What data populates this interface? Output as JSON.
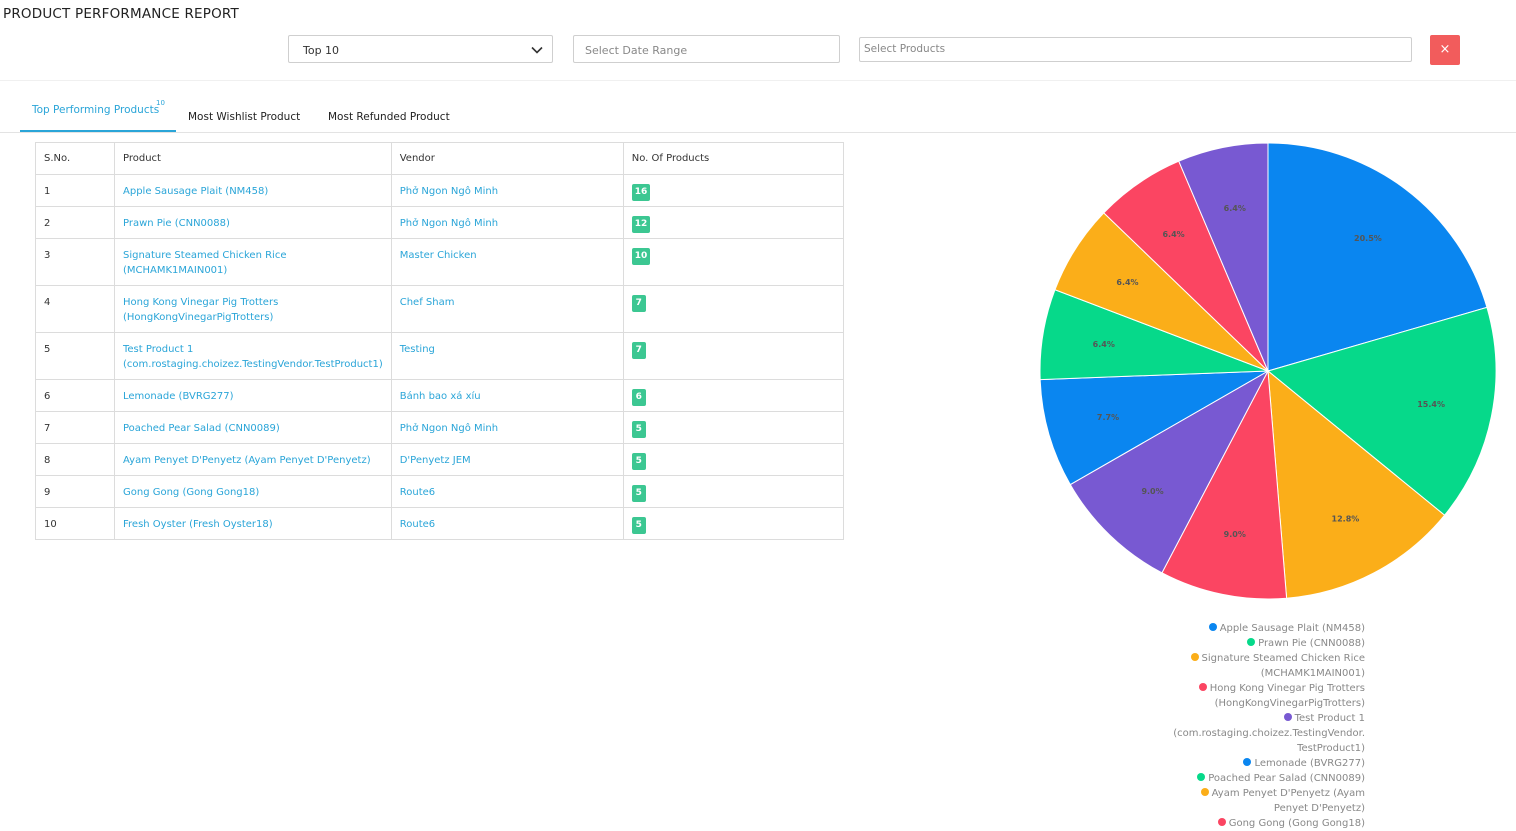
{
  "page_title": "PRODUCT PERFORMANCE REPORT",
  "filters": {
    "top_select_value": "Top 10",
    "date_placeholder": "Select Date Range",
    "products_placeholder": "Select Products",
    "clear_label": "×"
  },
  "tabs": [
    {
      "label": "Top Performing Products",
      "badge": "10",
      "active": true
    },
    {
      "label": "Most Wishlist Product",
      "active": false
    },
    {
      "label": "Most Refunded Product",
      "active": false
    }
  ],
  "table": {
    "headers": [
      "S.No.",
      "Product",
      "Vendor",
      "No. Of Products"
    ],
    "rows": [
      {
        "sno": "1",
        "product": "Apple Sausage Plait (NM458)",
        "vendor": "Phở Ngon Ngô Minh",
        "count": "16"
      },
      {
        "sno": "2",
        "product": "Prawn Pie (CNN0088)",
        "vendor": "Phở Ngon Ngô Minh",
        "count": "12"
      },
      {
        "sno": "3",
        "product": "Signature Steamed Chicken Rice (MCHAMK1MAIN001)",
        "vendor": "Master Chicken",
        "count": "10"
      },
      {
        "sno": "4",
        "product": "Hong Kong Vinegar Pig Trotters (HongKongVinegarPigTrotters)",
        "vendor": "Chef Sham",
        "count": "7"
      },
      {
        "sno": "5",
        "product": "Test Product 1 (com.rostaging.choizez.TestingVendor.TestProduct1)",
        "vendor": "Testing",
        "count": "7"
      },
      {
        "sno": "6",
        "product": "Lemonade (BVRG277)",
        "vendor": "Bánh bao xá xíu",
        "count": "6"
      },
      {
        "sno": "7",
        "product": "Poached Pear Salad (CNN0089)",
        "vendor": "Phở Ngon Ngô Minh",
        "count": "5"
      },
      {
        "sno": "8",
        "product": "Ayam Penyet D'Penyetz (Ayam Penyet D'Penyetz)",
        "vendor": "D'Penyetz JEM",
        "count": "5"
      },
      {
        "sno": "9",
        "product": "Gong Gong (Gong Gong18)",
        "vendor": "Route6",
        "count": "5"
      },
      {
        "sno": "10",
        "product": "Fresh Oyster (Fresh Oyster18)",
        "vendor": "Route6",
        "count": "5"
      }
    ]
  },
  "chart_data": {
    "type": "pie",
    "slices": [
      {
        "label": "Apple Sausage Plait (NM458)",
        "value": 20.5,
        "text": "20.5%",
        "color": "#0a86f0"
      },
      {
        "label": "Prawn Pie (CNN0088)",
        "value": 15.4,
        "text": "15.4%",
        "color": "#06d98a"
      },
      {
        "label": "Signature Steamed Chicken Rice (MCHAMK1MAIN001)",
        "value": 12.8,
        "text": "12.8%",
        "color": "#fbae19"
      },
      {
        "label": "Hong Kong Vinegar Pig Trotters (HongKongVinegarPigTrotters)",
        "value": 9.0,
        "text": "9.0%",
        "color": "#fb4562"
      },
      {
        "label": "Test Product 1 (com.rostaging.choizez.TestingVendor.TestProduct1)",
        "value": 9.0,
        "text": "9.0%",
        "color": "#7859d2"
      },
      {
        "label": "Lemonade (BVRG277)",
        "value": 7.7,
        "text": "7.7%",
        "color": "#0a86f0"
      },
      {
        "label": "Poached Pear Salad (CNN0089)",
        "value": 6.4,
        "text": "6.4%",
        "color": "#06d98a"
      },
      {
        "label": "Ayam Penyet D'Penyetz (Ayam Penyet D'Penyetz)",
        "value": 6.4,
        "text": "6.4%",
        "color": "#fbae19"
      },
      {
        "label": "Gong Gong (Gong Gong18)",
        "value": 6.4,
        "text": "6.4%",
        "color": "#fb4562"
      },
      {
        "label": "Fresh Oyster (Fresh Oyster18)",
        "value": 6.4,
        "text": "6.4%",
        "color": "#7859d2"
      }
    ],
    "legend": [
      {
        "lines": [
          "Apple Sausage Plait (NM458)"
        ],
        "color": "#0a86f0"
      },
      {
        "lines": [
          "Prawn Pie (CNN0088)"
        ],
        "color": "#06d98a"
      },
      {
        "lines": [
          "Signature Steamed Chicken Rice",
          "(MCHAMK1MAIN001)"
        ],
        "color": "#fbae19"
      },
      {
        "lines": [
          "Hong Kong Vinegar Pig Trotters",
          "(HongKongVinegarPigTrotters)"
        ],
        "color": "#fb4562"
      },
      {
        "lines": [
          "Test Product 1",
          "(com.rostaging.choizez.TestingVendor.",
          "TestProduct1)"
        ],
        "color": "#7859d2"
      },
      {
        "lines": [
          "Lemonade (BVRG277)"
        ],
        "color": "#0a86f0"
      },
      {
        "lines": [
          "Poached Pear Salad (CNN0089)"
        ],
        "color": "#06d98a"
      },
      {
        "lines": [
          "Ayam Penyet D'Penyetz (Ayam",
          "Penyet D'Penyetz)"
        ],
        "color": "#fbae19"
      },
      {
        "lines": [
          "Gong Gong (Gong Gong18)"
        ],
        "color": "#fb4562"
      }
    ]
  }
}
